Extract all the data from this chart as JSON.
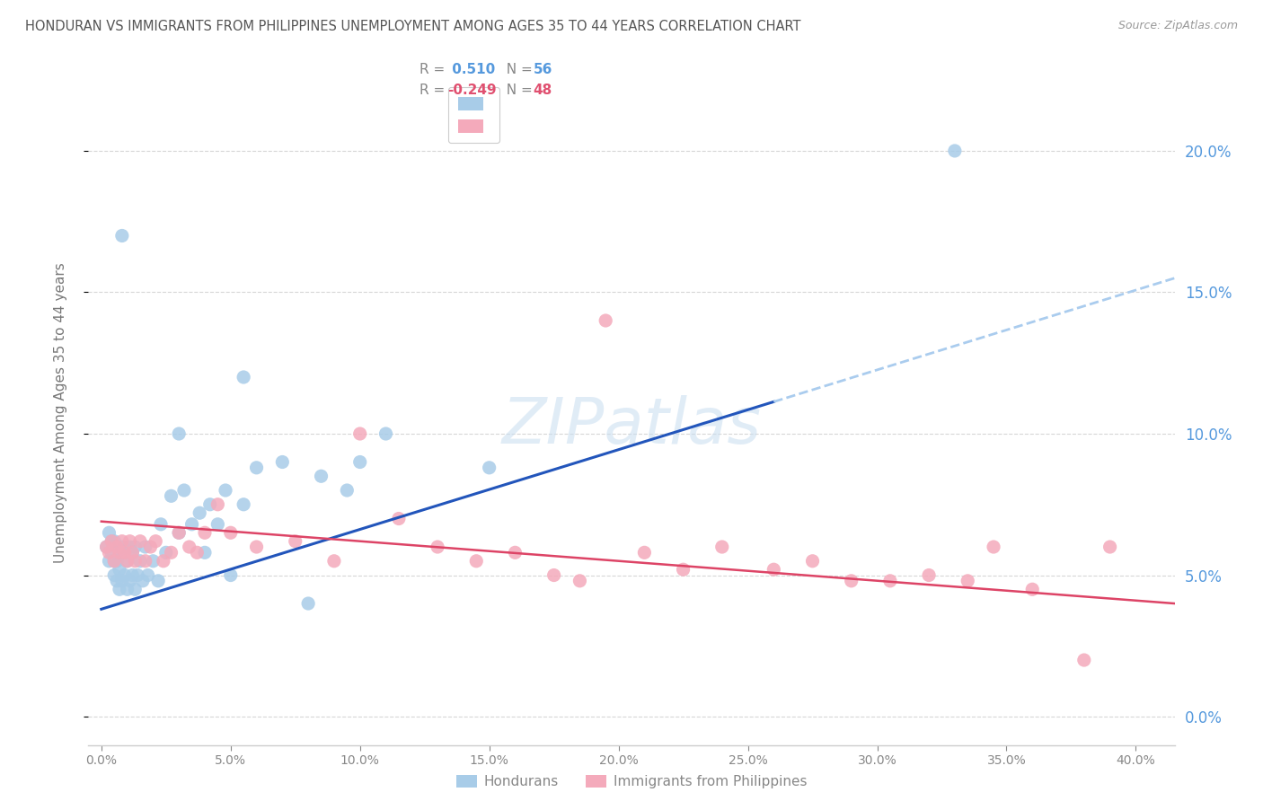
{
  "title": "HONDURAN VS IMMIGRANTS FROM PHILIPPINES UNEMPLOYMENT AMONG AGES 35 TO 44 YEARS CORRELATION CHART",
  "source": "Source: ZipAtlas.com",
  "ylabel": "Unemployment Among Ages 35 to 44 years",
  "xlim": [
    -0.005,
    0.415
  ],
  "ylim": [
    -0.01,
    0.225
  ],
  "blue_R": 0.51,
  "blue_N": 56,
  "pink_R": -0.249,
  "pink_N": 48,
  "blue_color": "#a8cce8",
  "pink_color": "#f4aabb",
  "blue_line_color": "#2255bb",
  "pink_line_color": "#dd4466",
  "dashed_line_color": "#aaccee",
  "background_color": "#ffffff",
  "grid_color": "#cccccc",
  "title_color": "#555555",
  "axis_label_color": "#777777",
  "right_tick_color": "#5599dd",
  "bottom_tick_color": "#888888",
  "legend_label1": "Hondurans",
  "legend_label2": "Immigrants from Philippines",
  "yticks": [
    0.0,
    0.05,
    0.1,
    0.15,
    0.2
  ],
  "xticks": [
    0.0,
    0.05,
    0.1,
    0.15,
    0.2,
    0.25,
    0.3,
    0.35,
    0.4
  ],
  "blue_line_start_x": 0.0,
  "blue_line_end_solid_x": 0.26,
  "blue_line_end_dashed_x": 0.415,
  "blue_line_start_y": 0.038,
  "blue_line_end_y": 0.155,
  "pink_line_start_x": 0.0,
  "pink_line_end_x": 0.415,
  "pink_line_start_y": 0.069,
  "pink_line_end_y": 0.04,
  "blue_x": [
    0.002,
    0.003,
    0.003,
    0.004,
    0.004,
    0.005,
    0.005,
    0.005,
    0.006,
    0.006,
    0.007,
    0.007,
    0.008,
    0.008,
    0.009,
    0.009,
    0.01,
    0.01,
    0.011,
    0.011,
    0.012,
    0.012,
    0.013,
    0.013,
    0.014,
    0.015,
    0.016,
    0.017,
    0.018,
    0.02,
    0.022,
    0.023,
    0.025,
    0.027,
    0.03,
    0.032,
    0.035,
    0.038,
    0.04,
    0.042,
    0.045,
    0.048,
    0.05,
    0.055,
    0.06,
    0.07,
    0.08,
    0.085,
    0.095,
    0.11,
    0.03,
    0.008,
    0.055,
    0.1,
    0.15,
    0.33
  ],
  "blue_y": [
    0.06,
    0.055,
    0.065,
    0.058,
    0.062,
    0.05,
    0.055,
    0.062,
    0.048,
    0.055,
    0.045,
    0.052,
    0.048,
    0.06,
    0.05,
    0.058,
    0.045,
    0.055,
    0.048,
    0.06,
    0.05,
    0.058,
    0.045,
    0.06,
    0.05,
    0.055,
    0.048,
    0.06,
    0.05,
    0.055,
    0.048,
    0.068,
    0.058,
    0.078,
    0.065,
    0.08,
    0.068,
    0.072,
    0.058,
    0.075,
    0.068,
    0.08,
    0.05,
    0.075,
    0.088,
    0.09,
    0.04,
    0.085,
    0.08,
    0.1,
    0.1,
    0.17,
    0.12,
    0.09,
    0.088,
    0.2
  ],
  "pink_x": [
    0.002,
    0.003,
    0.004,
    0.005,
    0.006,
    0.007,
    0.008,
    0.009,
    0.01,
    0.011,
    0.012,
    0.013,
    0.015,
    0.017,
    0.019,
    0.021,
    0.024,
    0.027,
    0.03,
    0.034,
    0.037,
    0.04,
    0.045,
    0.05,
    0.06,
    0.075,
    0.09,
    0.1,
    0.115,
    0.13,
    0.145,
    0.16,
    0.175,
    0.185,
    0.195,
    0.21,
    0.225,
    0.24,
    0.26,
    0.275,
    0.29,
    0.305,
    0.32,
    0.335,
    0.345,
    0.36,
    0.38,
    0.39
  ],
  "pink_y": [
    0.06,
    0.058,
    0.062,
    0.055,
    0.06,
    0.058,
    0.062,
    0.058,
    0.055,
    0.062,
    0.058,
    0.055,
    0.062,
    0.055,
    0.06,
    0.062,
    0.055,
    0.058,
    0.065,
    0.06,
    0.058,
    0.065,
    0.075,
    0.065,
    0.06,
    0.062,
    0.055,
    0.1,
    0.07,
    0.06,
    0.055,
    0.058,
    0.05,
    0.048,
    0.14,
    0.058,
    0.052,
    0.06,
    0.052,
    0.055,
    0.048,
    0.048,
    0.05,
    0.048,
    0.06,
    0.045,
    0.02,
    0.06
  ]
}
